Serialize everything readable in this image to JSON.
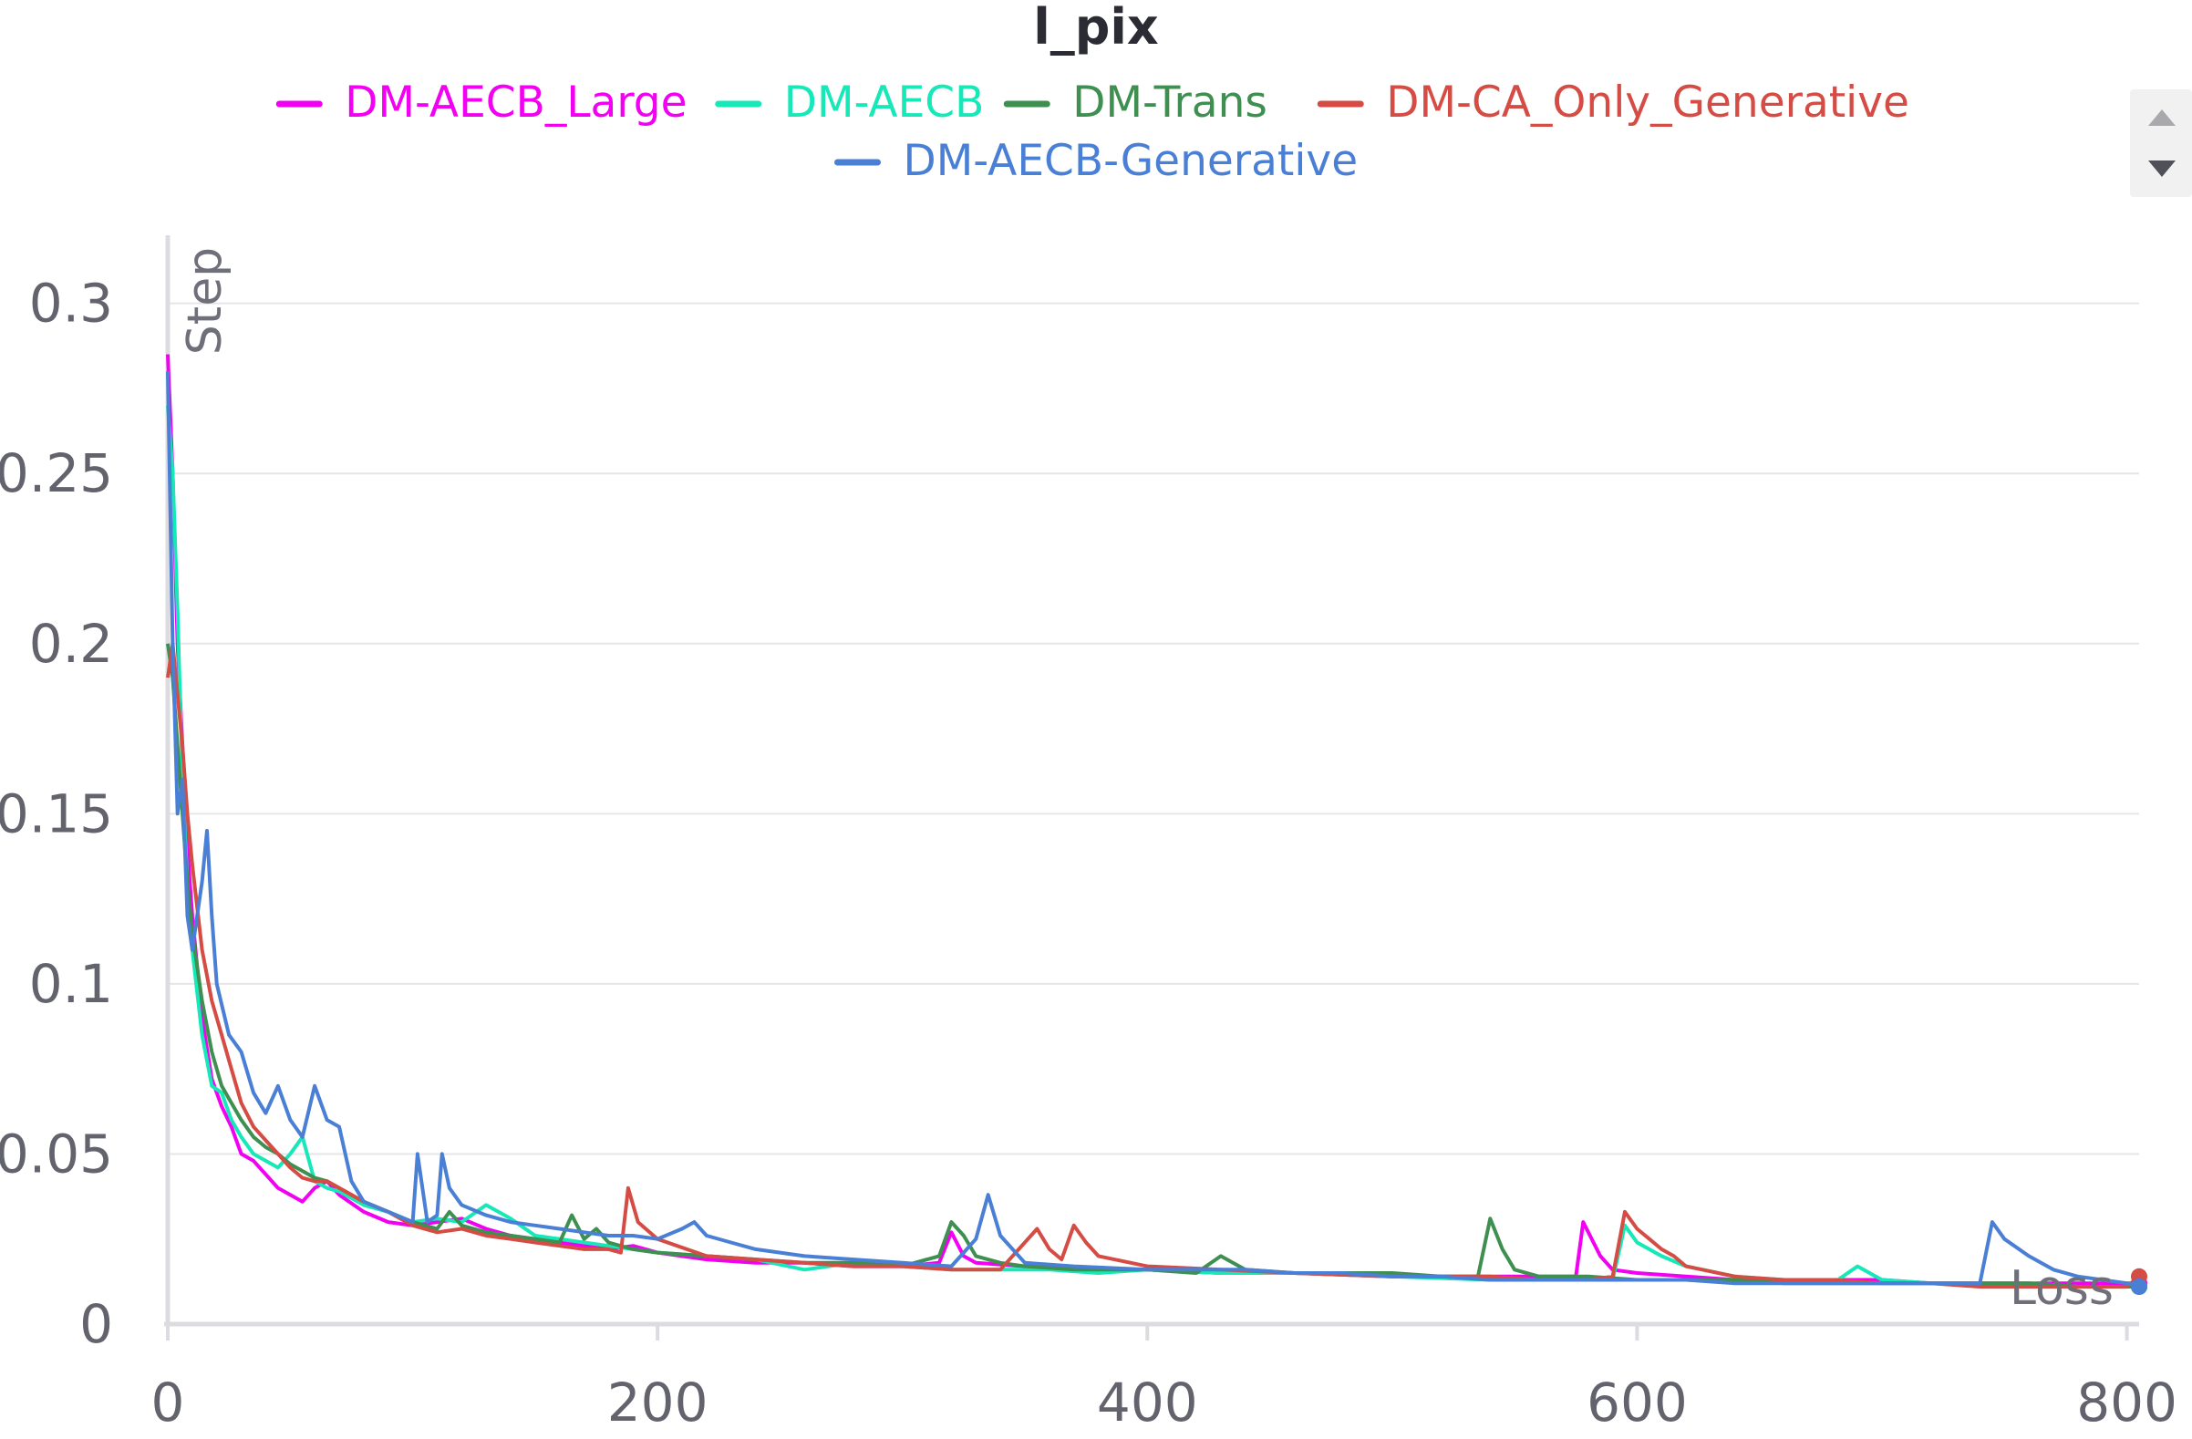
{
  "chart_data": {
    "type": "line",
    "title": "l_pix",
    "xlabel": "Step",
    "ylabel": "Loss",
    "xlim": [
      0,
      805
    ],
    "ylim": [
      0,
      0.32
    ],
    "xticks": [
      0,
      200,
      400,
      600,
      800
    ],
    "xtick_labels": [
      "0",
      "200",
      "400",
      "600",
      "800"
    ],
    "yticks": [
      0,
      0.05,
      0.1,
      0.15,
      0.2,
      0.25,
      0.3
    ],
    "ytick_labels": [
      "0",
      "0.05",
      "0.1",
      "0.15",
      "0.2",
      "0.25",
      "0.3"
    ],
    "grid": true,
    "legend_position": "top",
    "series": [
      {
        "name": "DM-AECB_Large",
        "color": "#f200f2",
        "x": [
          0,
          2,
          4,
          6,
          8,
          10,
          14,
          18,
          22,
          26,
          30,
          35,
          40,
          45,
          50,
          55,
          60,
          65,
          70,
          80,
          90,
          100,
          110,
          120,
          130,
          140,
          150,
          160,
          170,
          180,
          190,
          200,
          220,
          240,
          260,
          280,
          300,
          315,
          320,
          325,
          330,
          350,
          370,
          400,
          430,
          460,
          500,
          540,
          560,
          575,
          578,
          585,
          590,
          600,
          620,
          640,
          660,
          680,
          700,
          720,
          740,
          760,
          780,
          800,
          805
        ],
        "values": [
          0.285,
          0.25,
          0.2,
          0.17,
          0.14,
          0.12,
          0.09,
          0.072,
          0.064,
          0.058,
          0.05,
          0.048,
          0.044,
          0.04,
          0.038,
          0.036,
          0.04,
          0.042,
          0.038,
          0.033,
          0.03,
          0.029,
          0.03,
          0.031,
          0.028,
          0.026,
          0.025,
          0.024,
          0.023,
          0.022,
          0.023,
          0.021,
          0.019,
          0.018,
          0.018,
          0.017,
          0.017,
          0.018,
          0.027,
          0.02,
          0.018,
          0.017,
          0.016,
          0.016,
          0.015,
          0.015,
          0.014,
          0.014,
          0.014,
          0.014,
          0.03,
          0.02,
          0.016,
          0.015,
          0.014,
          0.013,
          0.013,
          0.013,
          0.013,
          0.012,
          0.012,
          0.012,
          0.012,
          0.012,
          0.012
        ]
      },
      {
        "name": "DM-AECB",
        "color": "#17e8b8",
        "x": [
          0,
          2,
          4,
          6,
          8,
          10,
          14,
          18,
          22,
          26,
          30,
          35,
          40,
          45,
          50,
          55,
          60,
          65,
          70,
          80,
          90,
          100,
          110,
          120,
          130,
          140,
          150,
          160,
          170,
          180,
          190,
          200,
          220,
          240,
          260,
          280,
          300,
          320,
          340,
          360,
          380,
          400,
          430,
          460,
          500,
          540,
          560,
          580,
          590,
          595,
          600,
          610,
          620,
          640,
          660,
          680,
          690,
          700,
          720,
          740,
          760,
          780,
          800,
          805
        ],
        "values": [
          0.27,
          0.25,
          0.21,
          0.16,
          0.13,
          0.11,
          0.085,
          0.07,
          0.068,
          0.06,
          0.055,
          0.05,
          0.048,
          0.046,
          0.05,
          0.055,
          0.042,
          0.04,
          0.039,
          0.035,
          0.033,
          0.03,
          0.031,
          0.03,
          0.035,
          0.031,
          0.026,
          0.025,
          0.024,
          0.023,
          0.022,
          0.021,
          0.02,
          0.019,
          0.016,
          0.018,
          0.017,
          0.016,
          0.016,
          0.016,
          0.015,
          0.016,
          0.015,
          0.015,
          0.014,
          0.013,
          0.013,
          0.013,
          0.013,
          0.029,
          0.024,
          0.02,
          0.017,
          0.014,
          0.013,
          0.012,
          0.017,
          0.013,
          0.012,
          0.012,
          0.012,
          0.011,
          0.011,
          0.011
        ]
      },
      {
        "name": "DM-Trans",
        "color": "#3e8f50",
        "x": [
          0,
          2,
          4,
          6,
          8,
          10,
          14,
          18,
          22,
          26,
          30,
          35,
          40,
          45,
          50,
          55,
          60,
          65,
          70,
          80,
          90,
          100,
          110,
          115,
          120,
          130,
          140,
          150,
          160,
          165,
          170,
          175,
          180,
          190,
          200,
          220,
          240,
          260,
          280,
          300,
          315,
          320,
          325,
          330,
          340,
          350,
          370,
          400,
          420,
          430,
          440,
          460,
          480,
          500,
          520,
          535,
          540,
          545,
          550,
          560,
          580,
          600,
          620,
          640,
          660,
          680,
          700,
          720,
          740,
          760,
          780,
          800,
          805
        ],
        "values": [
          0.2,
          0.19,
          0.17,
          0.15,
          0.13,
          0.115,
          0.095,
          0.08,
          0.07,
          0.065,
          0.06,
          0.055,
          0.052,
          0.05,
          0.047,
          0.045,
          0.043,
          0.042,
          0.04,
          0.036,
          0.033,
          0.03,
          0.028,
          0.033,
          0.029,
          0.027,
          0.026,
          0.025,
          0.024,
          0.032,
          0.025,
          0.028,
          0.024,
          0.022,
          0.021,
          0.02,
          0.019,
          0.018,
          0.018,
          0.017,
          0.02,
          0.03,
          0.026,
          0.02,
          0.018,
          0.017,
          0.016,
          0.016,
          0.015,
          0.02,
          0.016,
          0.015,
          0.015,
          0.015,
          0.014,
          0.014,
          0.031,
          0.022,
          0.016,
          0.014,
          0.014,
          0.013,
          0.013,
          0.013,
          0.012,
          0.012,
          0.012,
          0.012,
          0.012,
          0.012,
          0.011,
          0.011,
          0.011
        ]
      },
      {
        "name": "DM-CA_Only_Generative",
        "color": "#d54c45",
        "x": [
          0,
          2,
          4,
          6,
          8,
          10,
          14,
          18,
          22,
          26,
          30,
          35,
          40,
          45,
          50,
          55,
          60,
          65,
          70,
          80,
          90,
          100,
          110,
          120,
          130,
          140,
          150,
          160,
          170,
          180,
          185,
          188,
          192,
          200,
          220,
          240,
          260,
          280,
          300,
          320,
          340,
          355,
          360,
          365,
          370,
          375,
          380,
          400,
          430,
          460,
          500,
          540,
          560,
          580,
          590,
          595,
          600,
          605,
          610,
          615,
          620,
          640,
          660,
          680,
          700,
          720,
          740,
          760,
          780,
          800,
          805
        ],
        "values": [
          0.19,
          0.2,
          0.185,
          0.17,
          0.15,
          0.135,
          0.11,
          0.095,
          0.085,
          0.075,
          0.065,
          0.058,
          0.054,
          0.05,
          0.046,
          0.043,
          0.042,
          0.042,
          0.04,
          0.036,
          0.033,
          0.029,
          0.027,
          0.028,
          0.026,
          0.025,
          0.024,
          0.023,
          0.022,
          0.022,
          0.021,
          0.04,
          0.03,
          0.025,
          0.02,
          0.019,
          0.018,
          0.017,
          0.017,
          0.016,
          0.016,
          0.028,
          0.022,
          0.019,
          0.029,
          0.024,
          0.02,
          0.017,
          0.016,
          0.015,
          0.014,
          0.014,
          0.013,
          0.013,
          0.014,
          0.033,
          0.028,
          0.025,
          0.022,
          0.02,
          0.017,
          0.014,
          0.013,
          0.013,
          0.012,
          0.012,
          0.011,
          0.011,
          0.011,
          0.011,
          0.014
        ]
      },
      {
        "name": "DM-AECB-Generative",
        "color": "#4a7fd6",
        "x": [
          0,
          2,
          4,
          6,
          8,
          10,
          12,
          14,
          16,
          18,
          20,
          25,
          30,
          35,
          40,
          45,
          50,
          55,
          60,
          65,
          70,
          75,
          80,
          90,
          100,
          102,
          106,
          110,
          112,
          115,
          120,
          130,
          140,
          150,
          160,
          170,
          180,
          190,
          200,
          210,
          215,
          220,
          230,
          240,
          260,
          280,
          300,
          320,
          330,
          335,
          340,
          350,
          370,
          400,
          420,
          440,
          460,
          480,
          500,
          520,
          540,
          560,
          580,
          600,
          620,
          640,
          660,
          680,
          700,
          720,
          740,
          745,
          750,
          760,
          770,
          780,
          800,
          805
        ],
        "values": [
          0.28,
          0.2,
          0.15,
          0.16,
          0.12,
          0.11,
          0.12,
          0.13,
          0.145,
          0.12,
          0.1,
          0.085,
          0.08,
          0.068,
          0.062,
          0.07,
          0.06,
          0.055,
          0.07,
          0.06,
          0.058,
          0.042,
          0.036,
          0.033,
          0.03,
          0.05,
          0.03,
          0.032,
          0.05,
          0.04,
          0.035,
          0.032,
          0.03,
          0.029,
          0.028,
          0.027,
          0.026,
          0.026,
          0.025,
          0.028,
          0.03,
          0.026,
          0.024,
          0.022,
          0.02,
          0.019,
          0.018,
          0.017,
          0.025,
          0.038,
          0.026,
          0.018,
          0.017,
          0.016,
          0.016,
          0.016,
          0.015,
          0.015,
          0.014,
          0.014,
          0.013,
          0.013,
          0.013,
          0.013,
          0.013,
          0.012,
          0.012,
          0.012,
          0.012,
          0.012,
          0.012,
          0.03,
          0.025,
          0.02,
          0.016,
          0.014,
          0.012,
          0.011
        ]
      }
    ]
  },
  "scroll_up_icon": "triangle-up",
  "scroll_down_icon": "triangle-down"
}
